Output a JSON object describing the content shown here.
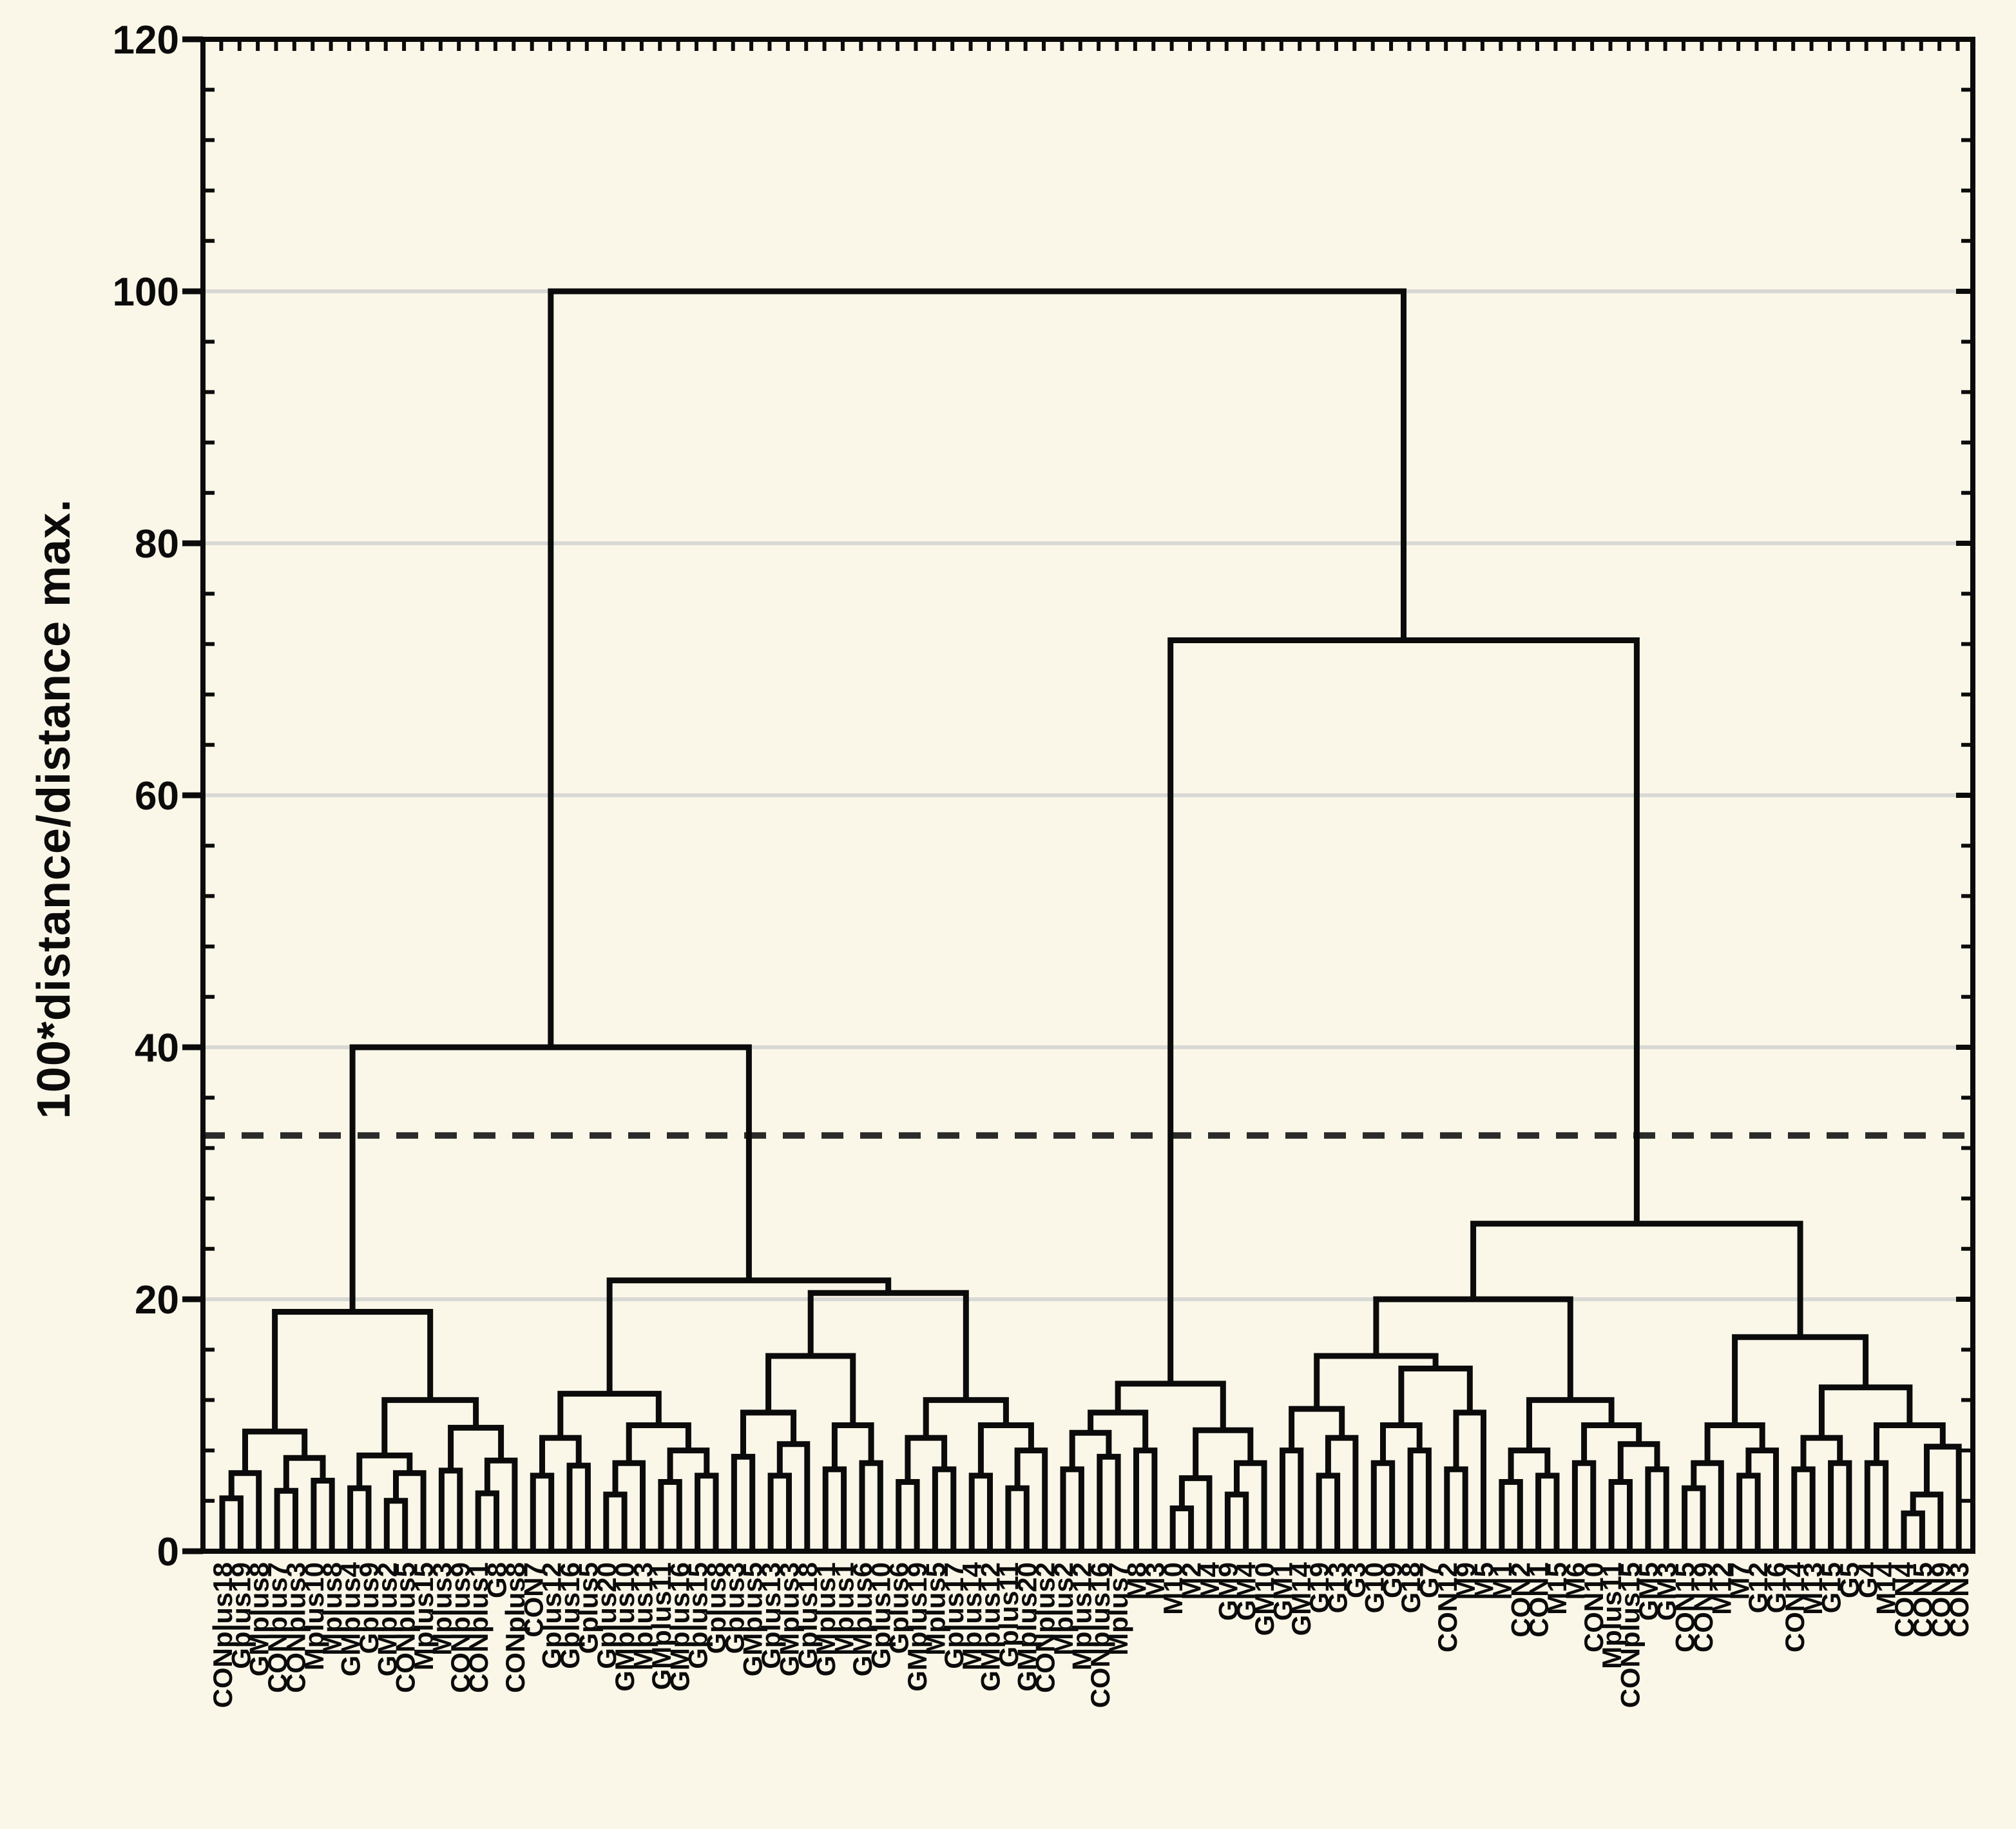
{
  "figure": {
    "background": "#FBF7E8",
    "line_color": "#0b0b0b",
    "grid_color": "#D8D8D4",
    "dashed_line_color": "#2b2b2b",
    "text_color": "#0b0b0b"
  },
  "chart_data": {
    "type": "dendrogram",
    "title": "",
    "xlabel": "",
    "ylabel": "100*distance/distance max.",
    "ylim": [
      0,
      120
    ],
    "yticks": [
      0,
      20,
      40,
      60,
      80,
      100,
      120
    ],
    "minor_tick_step": 4,
    "grid": "horizontal major gridlines, light gray",
    "legend": "none",
    "cutoff_line": {
      "value": 33,
      "style": "dashed"
    },
    "root_merge_height": 100,
    "main_cluster_merge_heights": [
      40,
      72.3
    ],
    "leaves": [
      "CONplus18",
      "Gplus19",
      "GMplus8",
      "CONplus7",
      "CONplus3",
      "Mplus10",
      "Mplus8",
      "GMplus4",
      "Gplus9",
      "GMplus2",
      "CONplus5",
      "Mplus15",
      "Mplus3",
      "CONplus9",
      "CONplus1",
      "G8",
      "CONplus8",
      "CON7",
      "Gplus12",
      "Gplus16",
      "Gplus5",
      "Gplus20",
      "GMplus10",
      "Mplus13",
      "GMplus11",
      "GMplus16",
      "Gplus15",
      "Gplus8",
      "Gplus3",
      "GMplus5",
      "Gplus13",
      "GMplus3",
      "Gplus18",
      "GMplus1",
      "Mplus1",
      "GMplus6",
      "Gplus10",
      "Gplus6",
      "GMplus19",
      "Mplus5",
      "Gplus17",
      "Mplus14",
      "GMplus12",
      "Gplus11",
      "GMplus20",
      "CONplus2",
      "Mplus2",
      "Mplus12",
      "CONplus16",
      "Mplus7",
      "M8",
      "M3",
      "M10",
      "M2",
      "M4",
      "GM9",
      "GM4",
      "GM10",
      "GM1",
      "GM14",
      "G19",
      "G13",
      "G3",
      "G10",
      "G9",
      "G18",
      "G7",
      "CON12",
      "M9",
      "M5",
      "M1",
      "CON2",
      "CON1",
      "M15",
      "M6",
      "CON10",
      "Mplus11",
      "CONplus15",
      "GM5",
      "GM3",
      "CON15",
      "CON19",
      "M12",
      "M7",
      "G12",
      "G16",
      "CON14",
      "M13",
      "G15",
      "G5",
      "G4",
      "M14",
      "CON4",
      "CON5",
      "CON9",
      "CON3"
    ],
    "linkage_tree": [
      100,
      [
        40,
        [
          19,
          [
            9.5,
            [
              6.2,
              [
                4.2,
                0,
                1
              ],
              2
            ],
            [
              7.4,
              [
                4.8,
                3,
                4
              ],
              [
                5.6,
                5,
                6
              ]
            ]
          ],
          [
            12,
            [
              7.6,
              [
                5,
                7,
                8
              ],
              [
                6.2,
                [
                  4,
                  9,
                  10
                ],
                11
              ]
            ],
            [
              9.8,
              [
                6.4,
                12,
                13
              ],
              [
                7.2,
                [
                  4.6,
                  14,
                  15
                ],
                16
              ]
            ]
          ]
        ],
        [
          21.5,
          [
            12.5,
            [
              9,
              [
                6,
                17,
                18
              ],
              [
                6.8,
                19,
                20
              ]
            ],
            [
              10,
              [
                7,
                [
                  4.5,
                  21,
                  22
                ],
                23
              ],
              [
                8,
                [
                  5.5,
                  24,
                  25
                ],
                [
                  6,
                  26,
                  27
                ]
              ]
            ]
          ],
          [
            20.5,
            [
              15.5,
              [
                11,
                [
                  7.5,
                  28,
                  29
                ],
                [
                  8.5,
                  [
                    6,
                    30,
                    31
                  ],
                  32
                ]
              ],
              [
                10,
                [
                  6.5,
                  33,
                  34
                ],
                [
                  7,
                  35,
                  36
                ]
              ]
            ],
            [
              12,
              [
                9,
                [
                  5.5,
                  37,
                  38
                ],
                [
                  6.5,
                  39,
                  40
                ]
              ],
              [
                10,
                [
                  6,
                  41,
                  42
                ],
                [
                  8,
                  [
                    5,
                    43,
                    44
                  ],
                  45
                ]
              ]
            ]
          ]
        ]
      ],
      [
        72.3,
        [
          13.3,
          [
            11,
            [
              9.4,
              [
                6.5,
                46,
                47
              ],
              [
                7.5,
                48,
                49
              ]
            ],
            [
              8,
              50,
              51
            ]
          ],
          [
            9.6,
            [
              5.8,
              [
                3.4,
                52,
                53
              ],
              54
            ],
            [
              7,
              [
                4.5,
                55,
                56
              ],
              57
            ]
          ]
        ],
        [
          26,
          [
            20,
            [
              15.5,
              [
                11.3,
                [
                  8,
                  58,
                  59
                ],
                [
                  9,
                  [
                    6,
                    60,
                    61
                  ],
                  62
                ]
              ],
              [
                14.5,
                [
                  10,
                  [
                    7,
                    63,
                    64
                  ],
                  [
                    8,
                    65,
                    66
                  ]
                ],
                [
                  11,
                  [
                    6.5,
                    67,
                    68
                  ],
                  69
                ]
              ]
            ],
            [
              12,
              [
                8,
                [
                  5.5,
                  70,
                  71
                ],
                [
                  6,
                  72,
                  73
                ]
              ],
              [
                10,
                [
                  7,
                  74,
                  75
                ],
                [
                  8.5,
                  [
                    5.5,
                    76,
                    77
                  ],
                  [
                    6.5,
                    78,
                    79
                  ]
                ]
              ]
            ]
          ],
          [
            17,
            [
              10,
              [
                7,
                [
                  5,
                  80,
                  81
                ],
                82
              ],
              [
                8,
                [
                  6,
                  83,
                  84
                ],
                85
              ]
            ],
            [
              13,
              [
                9,
                [
                  6.5,
                  86,
                  87
                ],
                [
                  7,
                  88,
                  89
                ]
              ],
              [
                10,
                [
                  7,
                  90,
                  91
                ],
                [
                  8.3,
                  [
                    4.5,
                    [
                      3,
                      92,
                      93
                    ],
                    94
                  ],
                  95
                ]
              ]
            ]
          ]
        ]
      ]
    ]
  }
}
